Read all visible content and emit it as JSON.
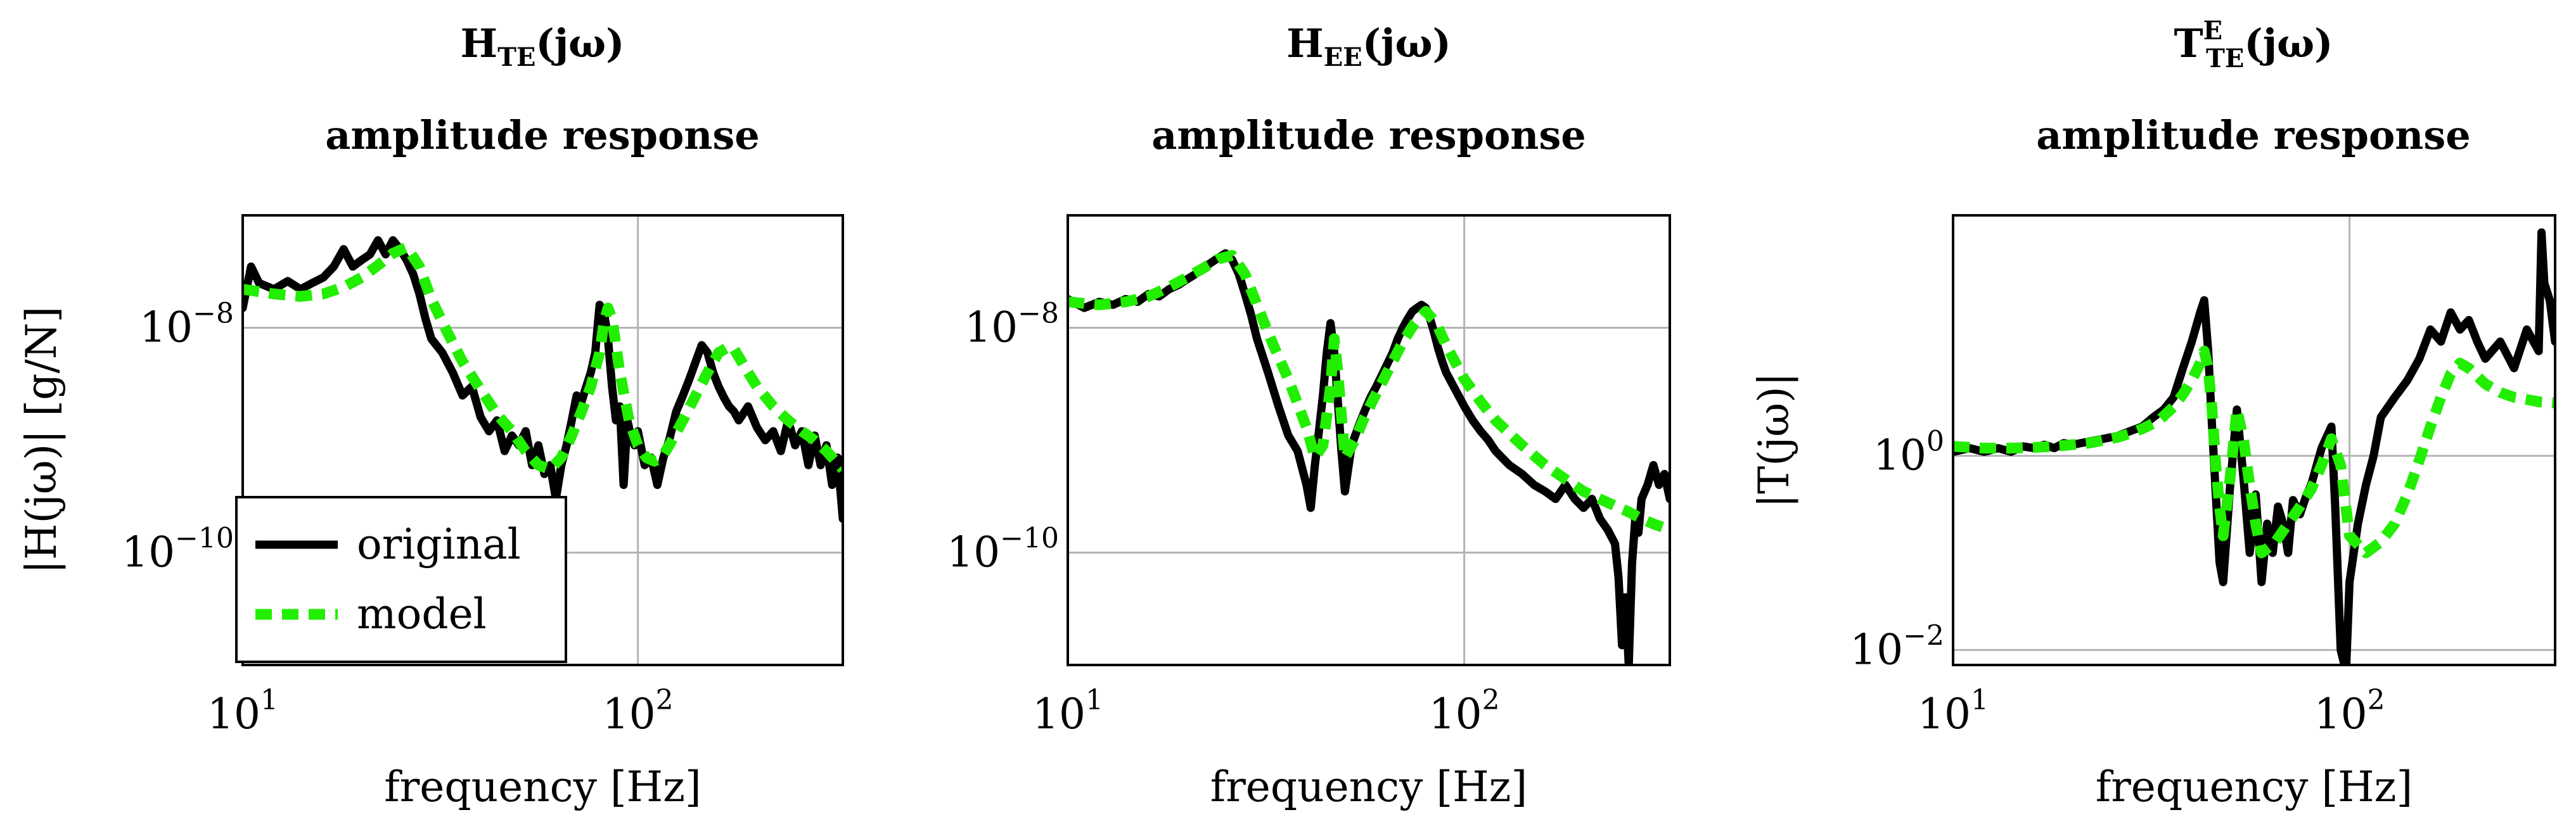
{
  "colors": {
    "original": "#000000",
    "model": "#22ee00",
    "grid": "#b3b3b3",
    "frame": "#000000"
  },
  "legend": {
    "placement": "bottom-left",
    "entries": [
      "original",
      "model"
    ]
  },
  "chart_data": [
    {
      "type": "line",
      "title_main": "H",
      "title_sub": "TE",
      "title_sup": "",
      "title_args": "(jω)",
      "title_line2": "amplitude response",
      "xlabel": "frequency [Hz]",
      "ylabel": "|H(jω)| [g/N]",
      "xscale": "log",
      "yscale": "log",
      "xlim": [
        10,
        330
      ],
      "ylim": [
        1e-11,
        1e-07
      ],
      "grid": true,
      "xticks": [
        {
          "value": 10,
          "base": "10",
          "exp": "1"
        },
        {
          "value": 100,
          "base": "10",
          "exp": "2"
        }
      ],
      "yticks": [
        {
          "value": 1e-08,
          "base": "10",
          "exp": "−8"
        },
        {
          "value": 1e-10,
          "base": "10",
          "exp": "−10"
        }
      ],
      "legend_shown": true,
      "series": [
        {
          "name": "original",
          "x": [
            10,
            10.5,
            11,
            12,
            13,
            14,
            15,
            16,
            17,
            18,
            19,
            20,
            21,
            22,
            23,
            24,
            25,
            26,
            27,
            28,
            29,
            30,
            32,
            34,
            36,
            38,
            40,
            42,
            44,
            46,
            48,
            50,
            52,
            54,
            56,
            58,
            60,
            62,
            64,
            66,
            68,
            70,
            72,
            74,
            76,
            78,
            80,
            82,
            84,
            86,
            88,
            90,
            92,
            94,
            96,
            98,
            100,
            104,
            108,
            112,
            116,
            120,
            125,
            130,
            135,
            140,
            145,
            150,
            155,
            160,
            165,
            170,
            175,
            180,
            190,
            200,
            210,
            220,
            230,
            240,
            250,
            260,
            270,
            280,
            290,
            300,
            310,
            320,
            330
          ],
          "y": [
            1.5e-08,
            3.5e-08,
            2.5e-08,
            2.2e-08,
            2.6e-08,
            2.2e-08,
            2.5e-08,
            2.8e-08,
            3.5e-08,
            5e-08,
            3.5e-08,
            4e-08,
            4.5e-08,
            6e-08,
            4.5e-08,
            6e-08,
            5e-08,
            4e-08,
            3e-08,
            2e-08,
            1.2e-08,
            8e-09,
            6e-09,
            4e-09,
            2.5e-09,
            3e-09,
            1.6e-09,
            1.2e-09,
            1.5e-09,
            8e-10,
            1.1e-09,
            9e-10,
            1.2e-09,
            6e-10,
            9e-10,
            5e-10,
            6e-10,
            3e-10,
            6e-10,
            9e-10,
            1.5e-09,
            2.5e-09,
            2.2e-09,
            3e-09,
            4e-09,
            6e-09,
            1.6e-08,
            1.4e-08,
            8e-09,
            3e-09,
            1.5e-09,
            2e-09,
            4e-10,
            1.5e-09,
            1.1e-09,
            9e-10,
            1.2e-09,
            6e-10,
            7e-10,
            4e-10,
            7e-10,
            1e-09,
            1.8e-09,
            2.5e-09,
            3.5e-09,
            5e-09,
            7e-09,
            6e-09,
            4e-09,
            3e-09,
            2.4e-09,
            2e-09,
            1.8e-09,
            1.5e-09,
            2e-09,
            1.3e-09,
            1e-09,
            1.2e-09,
            8e-10,
            1.5e-09,
            9e-10,
            1.2e-09,
            6e-10,
            1.1e-09,
            6e-10,
            9e-10,
            4e-10,
            7e-10,
            2e-10
          ]
        },
        {
          "name": "model",
          "x": [
            10,
            12,
            14,
            16,
            18,
            20,
            22,
            24,
            26,
            28,
            30,
            33,
            36,
            40,
            44,
            48,
            52,
            56,
            60,
            64,
            68,
            72,
            76,
            80,
            82,
            84,
            86,
            88,
            90,
            95,
            100,
            105,
            110,
            115,
            120,
            130,
            140,
            150,
            160,
            170,
            175,
            180,
            190,
            200,
            220,
            240,
            260,
            280,
            300,
            330
          ],
          "y": [
            2.2e-08,
            2e-08,
            1.9e-08,
            2e-08,
            2.3e-08,
            2.8e-08,
            3.6e-08,
            4.6e-08,
            5.2e-08,
            3.5e-08,
            1.8e-08,
            9e-09,
            5e-09,
            2.8e-09,
            1.7e-09,
            1.2e-09,
            8e-10,
            6e-10,
            5.5e-10,
            7e-10,
            1.1e-09,
            1.8e-09,
            3e-09,
            6e-09,
            1.1e-08,
            1.5e-08,
            1.2e-08,
            7e-09,
            4e-09,
            1.5e-09,
            9e-10,
            7e-10,
            6.5e-10,
            7e-10,
            9e-10,
            1.5e-09,
            2.5e-09,
            4e-09,
            6e-09,
            6.8e-09,
            6.5e-09,
            5.5e-09,
            4e-09,
            3e-09,
            2e-09,
            1.5e-09,
            1.2e-09,
            1e-09,
            8e-10,
            5.5e-10
          ]
        }
      ]
    },
    {
      "type": "line",
      "title_main": "H",
      "title_sub": "EE",
      "title_sup": "",
      "title_args": "(jω)",
      "title_line2": "amplitude response",
      "xlabel": "frequency [Hz]",
      "ylabel": "",
      "xscale": "log",
      "yscale": "log",
      "xlim": [
        10,
        330
      ],
      "ylim": [
        1e-11,
        1e-07
      ],
      "grid": true,
      "xticks": [
        {
          "value": 10,
          "base": "10",
          "exp": "1"
        },
        {
          "value": 100,
          "base": "10",
          "exp": "2"
        }
      ],
      "yticks": [
        {
          "value": 1e-08,
          "base": "10",
          "exp": "−8"
        },
        {
          "value": 1e-10,
          "base": "10",
          "exp": "−10"
        }
      ],
      "legend_shown": false,
      "series": [
        {
          "name": "original",
          "x": [
            10,
            11,
            12,
            13,
            14,
            15,
            16,
            17,
            18,
            19,
            20,
            21,
            22,
            23,
            24,
            25,
            26,
            27,
            28,
            29,
            30,
            32,
            34,
            36,
            38,
            40,
            41,
            42,
            43,
            44,
            45,
            46,
            47,
            48,
            49,
            50,
            52,
            54,
            56,
            58,
            60,
            62,
            64,
            66,
            68,
            70,
            72,
            74,
            76,
            78,
            80,
            82,
            84,
            86,
            88,
            90,
            95,
            100,
            105,
            110,
            115,
            120,
            130,
            140,
            150,
            160,
            170,
            180,
            190,
            200,
            210,
            220,
            230,
            240,
            245,
            250,
            255,
            260,
            265,
            270,
            275,
            280,
            290,
            300,
            310,
            320,
            330
          ],
          "y": [
            1.8e-08,
            1.5e-08,
            1.7e-08,
            1.6e-08,
            1.8e-08,
            1.7e-08,
            2e-08,
            1.9e-08,
            2.2e-08,
            2.4e-08,
            2.7e-08,
            3e-08,
            3.4e-08,
            3.8e-08,
            4.2e-08,
            4.6e-08,
            4e-08,
            3e-08,
            2e-08,
            1.3e-08,
            8e-09,
            4e-09,
            2e-09,
            1.1e-09,
            8e-10,
            4e-10,
            2.5e-10,
            6e-10,
            1.2e-09,
            2.5e-09,
            6e-09,
            1.1e-08,
            6e-09,
            2.2e-09,
            8e-10,
            3.5e-10,
            9e-10,
            1.3e-09,
            1.8e-09,
            2.4e-09,
            3e-09,
            3.8e-09,
            4.8e-09,
            6e-09,
            8e-09,
            1e-08,
            1.2e-08,
            1.4e-08,
            1.5e-08,
            1.6e-08,
            1.5e-08,
            1.2e-08,
            9e-09,
            6.5e-09,
            5e-09,
            4e-09,
            2.8e-09,
            2e-09,
            1.5e-09,
            1.2e-09,
            1e-09,
            8e-10,
            6e-10,
            5e-10,
            4e-10,
            3.5e-10,
            3e-10,
            4e-10,
            3e-10,
            2.5e-10,
            3e-10,
            2e-10,
            1.6e-10,
            1.2e-10,
            6e-11,
            1.5e-11,
            4e-11,
            1e-11,
            8e-11,
            2e-10,
            1.5e-10,
            3e-10,
            4e-10,
            6e-10,
            4e-10,
            5e-10,
            3e-10
          ]
        },
        {
          "name": "model",
          "x": [
            10,
            12,
            14,
            16,
            18,
            20,
            22,
            24,
            26,
            28,
            30,
            33,
            36,
            40,
            42,
            44,
            46,
            47,
            48,
            50,
            53,
            56,
            60,
            65,
            70,
            75,
            80,
            85,
            90,
            100,
            110,
            120,
            140,
            160,
            180,
            200,
            220,
            240,
            260,
            280,
            300,
            330
          ],
          "y": [
            1.7e-08,
            1.6e-08,
            1.7e-08,
            1.9e-08,
            2.3e-08,
            2.8e-08,
            3.4e-08,
            4.1e-08,
            4.4e-08,
            3e-08,
            1.6e-08,
            7e-09,
            3.5e-09,
            1.3e-09,
            7e-10,
            9e-10,
            3e-09,
            8e-09,
            4e-09,
            7e-10,
            1e-09,
            1.6e-09,
            2.6e-09,
            4.5e-09,
            7.5e-09,
            1.1e-08,
            1.4e-08,
            1.1e-08,
            7e-09,
            3.5e-09,
            2.2e-09,
            1.5e-09,
            9e-10,
            6e-10,
            4.5e-10,
            3.5e-10,
            3e-10,
            2.6e-10,
            2.3e-10,
            2e-10,
            1.8e-10,
            1.6e-10
          ]
        }
      ]
    },
    {
      "type": "line",
      "title_main": "T",
      "title_sub": "TE",
      "title_sup": "E",
      "title_args": "(jω)",
      "title_line2": "amplitude response",
      "xlabel": "frequency [Hz]",
      "ylabel": "|T(jω)|",
      "xscale": "log",
      "yscale": "log",
      "xlim": [
        10,
        330
      ],
      "ylim": [
        0.007,
        300
      ],
      "grid": true,
      "xticks": [
        {
          "value": 10,
          "base": "10",
          "exp": "1"
        },
        {
          "value": 100,
          "base": "10",
          "exp": "2"
        }
      ],
      "yticks": [
        {
          "value": 1,
          "base": "10",
          "exp": "0"
        },
        {
          "value": 0.01,
          "base": "10",
          "exp": "−2"
        }
      ],
      "legend_shown": false,
      "series": [
        {
          "name": "original",
          "x": [
            10,
            11,
            12,
            13,
            14,
            15,
            16,
            17,
            18,
            19,
            20,
            22,
            24,
            26,
            28,
            30,
            32,
            34,
            36,
            38,
            40,
            42,
            43,
            44,
            45,
            46,
            47,
            48,
            50,
            52,
            54,
            56,
            58,
            60,
            62,
            64,
            66,
            68,
            70,
            72,
            75,
            78,
            80,
            85,
            90,
            92,
            95,
            98,
            100,
            105,
            110,
            115,
            120,
            130,
            140,
            150,
            160,
            170,
            180,
            190,
            200,
            210,
            220,
            240,
            260,
            280,
            300,
            305,
            310,
            320,
            330
          ],
          "y": [
            1.1,
            1.2,
            1.1,
            1.2,
            1.1,
            1.25,
            1.2,
            1.3,
            1.2,
            1.35,
            1.3,
            1.4,
            1.5,
            1.6,
            1.8,
            2.0,
            2.5,
            3.0,
            4.0,
            8.0,
            15,
            30,
            40,
            12,
            2,
            0.4,
            0.08,
            0.05,
            0.5,
            3,
            0.6,
            0.1,
            0.4,
            0.05,
            0.2,
            0.1,
            0.3,
            0.2,
            0.1,
            0.35,
            0.25,
            0.4,
            0.5,
            1.2,
            2.0,
            0.3,
            0.01,
            0.006,
            0.05,
            0.2,
            0.5,
            1.0,
            2.5,
            4,
            6,
            10,
            20,
            15,
            30,
            20,
            25,
            15,
            10,
            15,
            8,
            20,
            12,
            200,
            60,
            40,
            15
          ]
        },
        {
          "name": "model",
          "x": [
            10,
            12,
            14,
            16,
            18,
            20,
            22,
            24,
            26,
            28,
            30,
            33,
            36,
            38,
            40,
            42,
            43,
            44,
            45,
            46,
            47,
            48,
            50,
            52,
            54,
            56,
            58,
            60,
            65,
            70,
            75,
            80,
            85,
            90,
            95,
            100,
            110,
            120,
            130,
            140,
            150,
            160,
            170,
            180,
            190,
            200,
            220,
            240,
            260,
            280,
            300,
            330
          ],
          "y": [
            1.25,
            1.2,
            1.2,
            1.22,
            1.25,
            1.3,
            1.35,
            1.45,
            1.55,
            1.7,
            1.9,
            2.3,
            3.2,
            4.3,
            6,
            9,
            12,
            8,
            3,
            0.8,
            0.3,
            0.15,
            0.6,
            3,
            1.5,
            0.5,
            0.2,
            0.1,
            0.13,
            0.2,
            0.3,
            0.45,
            0.8,
            1.5,
            0.8,
            0.15,
            0.1,
            0.13,
            0.2,
            0.4,
            0.9,
            2.0,
            4.0,
            7,
            9,
            8,
            5.5,
            4.5,
            4,
            3.8,
            3.6,
            3.5
          ]
        }
      ]
    }
  ]
}
